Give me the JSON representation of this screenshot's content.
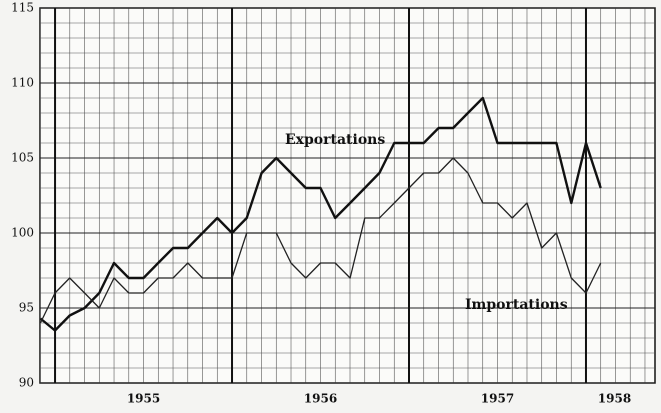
{
  "chart_data": {
    "type": "line",
    "x": [
      1954.917,
      1955,
      1955.083,
      1955.167,
      1955.25,
      1955.333,
      1955.417,
      1955.5,
      1955.583,
      1955.667,
      1955.75,
      1955.833,
      1955.917,
      1956,
      1956.083,
      1956.167,
      1956.25,
      1956.333,
      1956.417,
      1956.5,
      1956.583,
      1956.667,
      1956.75,
      1956.833,
      1956.917,
      1957,
      1957.083,
      1957.167,
      1957.25,
      1957.333,
      1957.417,
      1957.5,
      1957.583,
      1957.667,
      1957.75,
      1957.833,
      1957.917,
      1958,
      1958.083
    ],
    "series": [
      {
        "name": "Exportations",
        "color": "#111111",
        "width": 2.4,
        "values": [
          94.3,
          93.5,
          94.5,
          95,
          96,
          98,
          97,
          97,
          98,
          99,
          99,
          100,
          101,
          100,
          101,
          104,
          105,
          104,
          103,
          103,
          101,
          102,
          103,
          104,
          106,
          106,
          106,
          107,
          107,
          108,
          109,
          106,
          106,
          106,
          106,
          106,
          102,
          106,
          103
        ]
      },
      {
        "name": "Importations",
        "color": "#222222",
        "width": 1.3,
        "values": [
          94,
          96,
          97,
          96,
          95,
          97,
          96,
          96,
          97,
          97,
          98,
          97,
          97,
          97,
          100,
          100,
          100,
          98,
          97,
          98,
          98,
          97,
          101,
          101,
          102,
          103,
          104,
          104,
          105,
          104,
          102,
          102,
          101,
          102,
          99,
          100,
          97,
          96,
          98
        ]
      }
    ],
    "xlim": [
      1954.915,
      1958.39
    ],
    "xticks": [
      {
        "value": 1955,
        "label": "1955"
      },
      {
        "value": 1956,
        "label": "1956"
      },
      {
        "value": 1957,
        "label": "1957"
      },
      {
        "value": 1958,
        "label": "1958"
      }
    ],
    "ylim": [
      90,
      115
    ],
    "yticks": [
      90,
      95,
      100,
      105,
      110,
      115
    ],
    "grid": true
  }
}
